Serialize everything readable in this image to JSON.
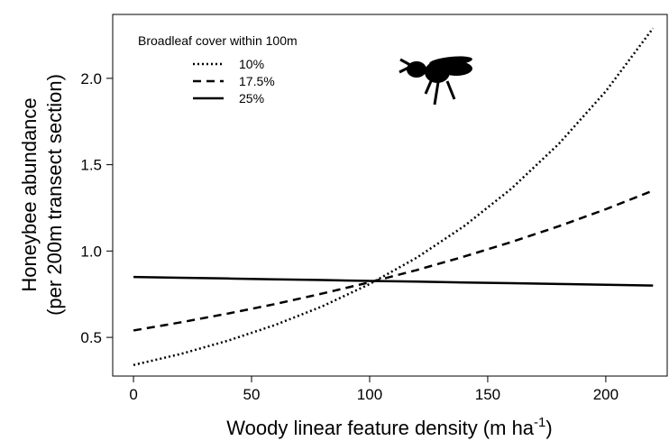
{
  "chart_data": {
    "type": "line",
    "x_label": [
      "Woody linear feature density (m ha",
      "-1",
      ")"
    ],
    "y_label": [
      "Honeybee abundance",
      "(per 200m transect section)"
    ],
    "legend_title": "Broadleaf cover within 100m",
    "x": [
      0,
      20,
      40,
      60,
      80,
      100,
      120,
      140,
      160,
      180,
      200,
      220
    ],
    "series": [
      {
        "name": "10%",
        "color": "#000000",
        "dash": "dotted",
        "values": [
          0.34,
          0.404,
          0.481,
          0.572,
          0.68,
          0.809,
          0.962,
          1.144,
          1.361,
          1.619,
          1.925,
          2.29
        ]
      },
      {
        "name": "17.5%",
        "color": "#000000",
        "dash": "dashed",
        "values": [
          0.54,
          0.587,
          0.638,
          0.693,
          0.754,
          0.819,
          0.89,
          0.968,
          1.052,
          1.143,
          1.242,
          1.35
        ]
      },
      {
        "name": "25%",
        "color": "#000000",
        "dash": "solid",
        "values": [
          0.85,
          0.845,
          0.841,
          0.836,
          0.832,
          0.827,
          0.823,
          0.818,
          0.814,
          0.809,
          0.805,
          0.8
        ]
      }
    ],
    "xlim": [
      -8.8,
      226
    ],
    "ylim": [
      0.276,
      2.37
    ],
    "xticks": [
      0,
      50,
      100,
      150,
      200
    ],
    "yticks": [
      0.5,
      {
        "value": 1.0,
        "label": "1.0"
      },
      1.5,
      {
        "value": 2.0,
        "label": "2.0"
      }
    ],
    "legend_position": "top-left"
  }
}
